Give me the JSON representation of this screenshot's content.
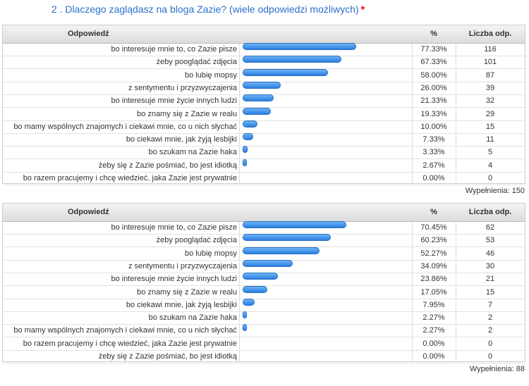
{
  "title": "2 . Dlaczego zaglądasz na bloga Zazie? (wiele odpowiedzi możliwych)",
  "required_mark": "*",
  "tables": [
    {
      "headers": [
        "Odpowiedź",
        "%",
        "Liczba odp."
      ],
      "rows": [
        {
          "answer": "bo interesuje mnie to, co Zazie pisze",
          "percent": {
            "value": 77.33,
            "label": "77.33%"
          },
          "count": 116
        },
        {
          "answer": "żeby pooglądać zdjęcia",
          "percent": {
            "value": 67.33,
            "label": "67.33%"
          },
          "count": 101
        },
        {
          "answer": "bo lubię mopsy",
          "percent": {
            "value": 58.0,
            "label": "58.00%"
          },
          "count": 87
        },
        {
          "answer": "z sentymentu i przyzwyczajenia",
          "percent": {
            "value": 26.0,
            "label": "26.00%"
          },
          "count": 39
        },
        {
          "answer": "bo interesuje mnie życie innych ludzi",
          "percent": {
            "value": 21.33,
            "label": "21.33%"
          },
          "count": 32
        },
        {
          "answer": "bo znamy się z Zazie w realu",
          "percent": {
            "value": 19.33,
            "label": "19.33%"
          },
          "count": 29
        },
        {
          "answer": "bo mamy wspólnych znajomych i ciekawi mnie, co u nich słychać",
          "percent": {
            "value": 10.0,
            "label": "10.00%"
          },
          "count": 15
        },
        {
          "answer": "bo ciekawi mnie, jak żyją lesbijki",
          "percent": {
            "value": 7.33,
            "label": "7.33%"
          },
          "count": 11
        },
        {
          "answer": "bo szukam na Zazie haka",
          "percent": {
            "value": 3.33,
            "label": "3.33%"
          },
          "count": 5
        },
        {
          "answer": "żeby się z Zazie pośmiać, bo jest idiotką",
          "percent": {
            "value": 2.67,
            "label": "2.67%"
          },
          "count": 4
        },
        {
          "answer": "bo razem pracujemy i chcę wiedzieć, jaka Zazie jest prywatnie",
          "percent": {
            "value": 0,
            "label": "0.00%"
          },
          "count": 0
        }
      ],
      "footer": "Wypełnienia: 150"
    },
    {
      "headers": [
        "Odpowiedź",
        "%",
        "Liczba odp."
      ],
      "rows": [
        {
          "answer": "bo interesuje mnie to, co Zazie pisze",
          "percent": {
            "value": 70.45,
            "label": "70.45%"
          },
          "count": 62
        },
        {
          "answer": "żeby pooglądać zdjęcia",
          "percent": {
            "value": 60.23,
            "label": "60.23%"
          },
          "count": 53
        },
        {
          "answer": "bo lubię mopsy",
          "percent": {
            "value": 52.27,
            "label": "52.27%"
          },
          "count": 46
        },
        {
          "answer": "z sentymentu i przyzwyczajenia",
          "percent": {
            "value": 34.09,
            "label": "34.09%"
          },
          "count": 30
        },
        {
          "answer": "bo interesuje mnie życie innych ludzi",
          "percent": {
            "value": 23.86,
            "label": "23.86%"
          },
          "count": 21
        },
        {
          "answer": "bo znamy się z Zazie w realu",
          "percent": {
            "value": 17.05,
            "label": "17.05%"
          },
          "count": 15
        },
        {
          "answer": "bo ciekawi mnie, jak żyją lesbijki",
          "percent": {
            "value": 7.95,
            "label": "7.95%"
          },
          "count": 7
        },
        {
          "answer": "bo szukam na Zazie haka",
          "percent": {
            "value": 2.27,
            "label": "2.27%"
          },
          "count": 2
        },
        {
          "answer": "bo mamy wspólnych znajomych i ciekawi mnie, co u nich słychać",
          "percent": {
            "value": 2.27,
            "label": "2.27%"
          },
          "count": 2
        },
        {
          "answer": "bo razem pracujemy i chcę wiedzieć, jaka Zazie jest prywatnie",
          "percent": {
            "value": 0,
            "label": "0.00%"
          },
          "count": 0
        },
        {
          "answer": "żeby się z Zazie pośmiać, bo jest idiotką",
          "percent": {
            "value": 0,
            "label": "0.00%"
          },
          "count": 0
        }
      ],
      "footer": "Wypełnienia: 88"
    }
  ]
}
